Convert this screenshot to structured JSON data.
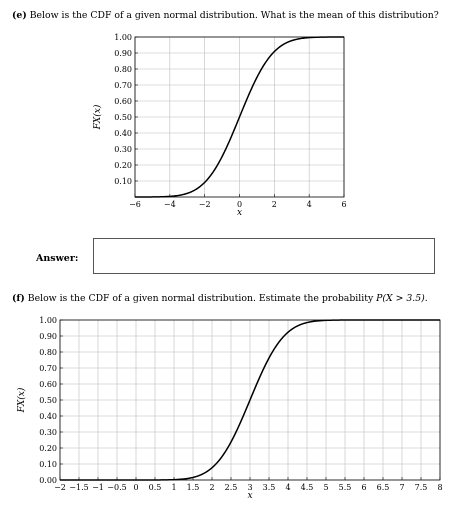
{
  "part_e": {
    "label": "(e)",
    "question": "Below is the CDF of a given normal distribution. What is the mean of this distribution?",
    "answer_label": "Answer:",
    "answer_value": ""
  },
  "part_f": {
    "label": "(f)",
    "question_prefix": "Below is the CDF of a given normal distribution. Estimate the probability ",
    "question_math": "P(X > 3.5).",
    "question_suffix": ""
  },
  "chart_data": [
    {
      "type": "line",
      "title": "",
      "xlabel": "x",
      "ylabel": "F_X(x)",
      "xlim": [
        -6,
        6
      ],
      "ylim": [
        0,
        1
      ],
      "xticks": [
        -6,
        -4,
        -2,
        0,
        2,
        4,
        6
      ],
      "xtick_labels": [
        "−6",
        "−4",
        "−2",
        "0",
        "2",
        "4",
        "6"
      ],
      "yticks": [
        0.1,
        0.2,
        0.3,
        0.4,
        0.5,
        0.6,
        0.7,
        0.8,
        0.9,
        1.0
      ],
      "ytick_labels": [
        "0.10",
        "0.20",
        "0.30",
        "0.40",
        "0.50",
        "0.60",
        "0.70",
        "0.80",
        "0.90",
        "1.00"
      ],
      "grid": true,
      "series": [
        {
          "distribution": "normal_cdf",
          "mean": 0,
          "sd": 1.5,
          "color": "#000000"
        }
      ]
    },
    {
      "type": "line",
      "title": "",
      "xlabel": "x",
      "ylabel": "F_X(x)",
      "xlim": [
        -2,
        8
      ],
      "ylim": [
        0,
        1
      ],
      "xticks": [
        -2,
        -1.5,
        -1,
        -0.5,
        0,
        0.5,
        1,
        1.5,
        2,
        2.5,
        3,
        3.5,
        4,
        4.5,
        5,
        5.5,
        6,
        6.5,
        7,
        7.5,
        8
      ],
      "xtick_labels": [
        "−2",
        "−1.5",
        "−1",
        "−0.5",
        "0",
        "0.5",
        "1",
        "1.5",
        "2",
        "2.5",
        "3",
        "3.5",
        "4",
        "4.5",
        "5",
        "5.5",
        "6",
        "6.5",
        "7",
        "7.5",
        "8"
      ],
      "yticks": [
        0,
        0.1,
        0.2,
        0.3,
        0.4,
        0.5,
        0.6,
        0.7,
        0.8,
        0.9,
        1.0
      ],
      "ytick_labels": [
        "0.00",
        "0.10",
        "0.20",
        "0.30",
        "0.40",
        "0.50",
        "0.60",
        "0.70",
        "0.80",
        "0.90",
        "1.00"
      ],
      "grid": true,
      "series": [
        {
          "distribution": "normal_cdf",
          "mean": 3,
          "sd": 0.7,
          "color": "#000000"
        }
      ]
    }
  ]
}
